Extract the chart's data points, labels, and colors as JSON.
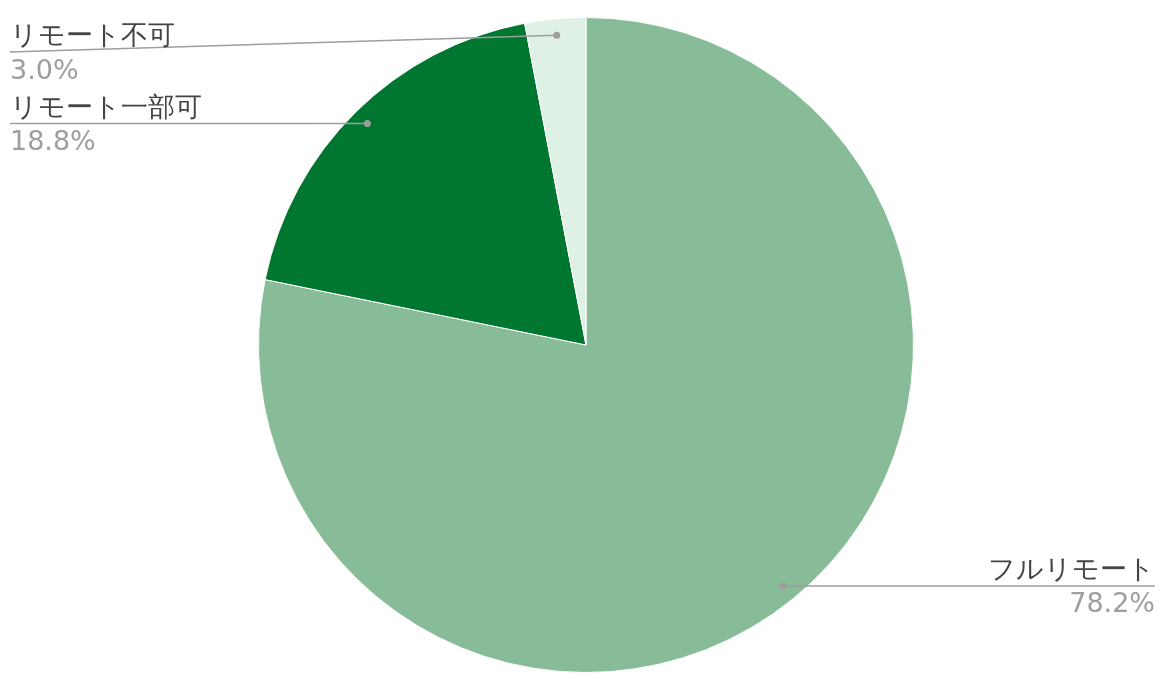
{
  "chart_data": {
    "type": "pie",
    "categories": [
      "フルリモート",
      "リモート一部可",
      "リモート不可"
    ],
    "values": [
      78.2,
      18.8,
      3.0
    ],
    "value_labels": [
      "78.2%",
      "18.8%",
      "3.0%"
    ],
    "colors": [
      "#88bc98",
      "#007730",
      "#dff1e5"
    ],
    "legend": false
  }
}
